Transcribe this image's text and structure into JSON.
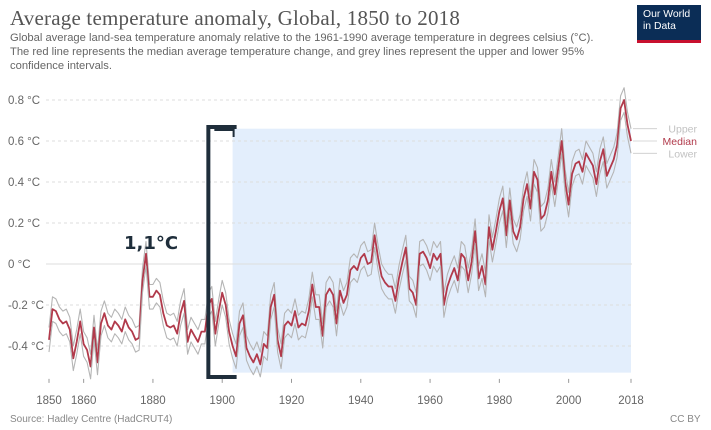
{
  "header": {
    "title": "Average temperature anomaly, Global, 1850 to 2018",
    "subtitle": "Global average land-sea temperature anomaly relative to the 1961-1990 average temperature in degrees celsius (°C). The red line represents the median average temperature change, and grey lines represent the upper and lower 95% confidence intervals.",
    "logo_line1": "Our World",
    "logo_line2": "in Data"
  },
  "footer": {
    "source": "Source: Hadley Centre (HadCRUT4)",
    "license": "CC BY"
  },
  "overlay": {
    "annotation_text": "1,1°C",
    "highlight_start_year": 1903,
    "highlight_end_year": 2018,
    "bracket_start_year": 1896,
    "bracket_end_year": 1903
  },
  "colors": {
    "median": "#b13a4b",
    "bounds": "#b5b5b5",
    "highlight": "#e3eefc",
    "grid": "#dddddd",
    "legend_upper": "#c2c2c2",
    "legend_median": "#b13a4b",
    "legend_lower": "#c2c2c2",
    "bracket": "#1f2e3b"
  },
  "chart_data": {
    "type": "line",
    "title": "Average temperature anomaly, Global, 1850 to 2018",
    "xlim": [
      1850,
      2018
    ],
    "ylim": [
      -0.55,
      0.85
    ],
    "x_ticks": [
      1850,
      1860,
      1880,
      1900,
      1920,
      1940,
      1960,
      1980,
      2000,
      2018
    ],
    "y_ticks": [
      {
        "value": 0.8,
        "label": "0.8 °C"
      },
      {
        "value": 0.6,
        "label": "0.6 °C"
      },
      {
        "value": 0.4,
        "label": "0.4 °C"
      },
      {
        "value": 0.2,
        "label": "0.2 °C"
      },
      {
        "value": 0.0,
        "label": "0 °C"
      },
      {
        "value": -0.2,
        "label": "-0.2 °C"
      },
      {
        "value": -0.4,
        "label": "-0.4 °C"
      }
    ],
    "grid": true,
    "series": [
      {
        "name": "Upper",
        "style": "bound",
        "offset": 0.06
      },
      {
        "name": "Median",
        "style": "median"
      },
      {
        "name": "Lower",
        "style": "bound",
        "offset": -0.06
      }
    ],
    "median": {
      "x": [
        1850,
        1851,
        1852,
        1853,
        1854,
        1855,
        1856,
        1857,
        1858,
        1859,
        1860,
        1861,
        1862,
        1863,
        1864,
        1865,
        1866,
        1867,
        1868,
        1869,
        1870,
        1871,
        1872,
        1873,
        1874,
        1875,
        1876,
        1877,
        1878,
        1879,
        1880,
        1881,
        1882,
        1883,
        1884,
        1885,
        1886,
        1887,
        1888,
        1889,
        1890,
        1891,
        1892,
        1893,
        1894,
        1895,
        1896,
        1897,
        1898,
        1899,
        1900,
        1901,
        1902,
        1903,
        1904,
        1905,
        1906,
        1907,
        1908,
        1909,
        1910,
        1911,
        1912,
        1913,
        1914,
        1915,
        1916,
        1917,
        1918,
        1919,
        1920,
        1921,
        1922,
        1923,
        1924,
        1925,
        1926,
        1927,
        1928,
        1929,
        1930,
        1931,
        1932,
        1933,
        1934,
        1935,
        1936,
        1937,
        1938,
        1939,
        1940,
        1941,
        1942,
        1943,
        1944,
        1945,
        1946,
        1947,
        1948,
        1949,
        1950,
        1951,
        1952,
        1953,
        1954,
        1955,
        1956,
        1957,
        1958,
        1959,
        1960,
        1961,
        1962,
        1963,
        1964,
        1965,
        1966,
        1967,
        1968,
        1969,
        1970,
        1971,
        1972,
        1973,
        1974,
        1975,
        1976,
        1977,
        1978,
        1979,
        1980,
        1981,
        1982,
        1983,
        1984,
        1985,
        1986,
        1987,
        1988,
        1989,
        1990,
        1991,
        1992,
        1993,
        1994,
        1995,
        1996,
        1997,
        1998,
        1999,
        2000,
        2001,
        2002,
        2003,
        2004,
        2005,
        2006,
        2007,
        2008,
        2009,
        2010,
        2011,
        2012,
        2013,
        2014,
        2015,
        2016,
        2017,
        2018
      ],
      "y": [
        -0.37,
        -0.22,
        -0.23,
        -0.27,
        -0.29,
        -0.28,
        -0.32,
        -0.46,
        -0.38,
        -0.28,
        -0.39,
        -0.42,
        -0.5,
        -0.31,
        -0.48,
        -0.29,
        -0.24,
        -0.3,
        -0.32,
        -0.28,
        -0.3,
        -0.33,
        -0.27,
        -0.31,
        -0.33,
        -0.37,
        -0.36,
        -0.08,
        0.05,
        -0.16,
        -0.16,
        -0.13,
        -0.15,
        -0.24,
        -0.3,
        -0.31,
        -0.3,
        -0.34,
        -0.24,
        -0.18,
        -0.38,
        -0.32,
        -0.35,
        -0.38,
        -0.33,
        -0.33,
        -0.2,
        -0.17,
        -0.34,
        -0.23,
        -0.14,
        -0.2,
        -0.33,
        -0.4,
        -0.45,
        -0.29,
        -0.25,
        -0.41,
        -0.45,
        -0.48,
        -0.44,
        -0.49,
        -0.39,
        -0.41,
        -0.21,
        -0.15,
        -0.37,
        -0.45,
        -0.3,
        -0.28,
        -0.3,
        -0.23,
        -0.31,
        -0.29,
        -0.3,
        -0.23,
        -0.1,
        -0.21,
        -0.21,
        -0.35,
        -0.15,
        -0.12,
        -0.15,
        -0.29,
        -0.13,
        -0.19,
        -0.15,
        -0.03,
        -0.01,
        -0.03,
        0.03,
        0.05,
        0.0,
        0.01,
        0.14,
        0.03,
        -0.06,
        -0.09,
        -0.11,
        -0.11,
        -0.18,
        -0.07,
        0.01,
        0.08,
        -0.12,
        -0.14,
        -0.2,
        0.05,
        0.06,
        0.03,
        -0.02,
        0.05,
        0.02,
        0.05,
        -0.2,
        -0.11,
        -0.06,
        -0.02,
        -0.08,
        0.05,
        0.03,
        -0.08,
        0.01,
        0.16,
        -0.07,
        -0.01,
        -0.1,
        0.18,
        0.07,
        0.16,
        0.26,
        0.32,
        0.14,
        0.31,
        0.16,
        0.12,
        0.18,
        0.32,
        0.39,
        0.27,
        0.45,
        0.41,
        0.22,
        0.24,
        0.31,
        0.45,
        0.34,
        0.47,
        0.6,
        0.4,
        0.29,
        0.44,
        0.49,
        0.5,
        0.45,
        0.54,
        0.51,
        0.48,
        0.39,
        0.5,
        0.56,
        0.43,
        0.47,
        0.51,
        0.58,
        0.76,
        0.8,
        0.68,
        0.6
      ]
    }
  }
}
